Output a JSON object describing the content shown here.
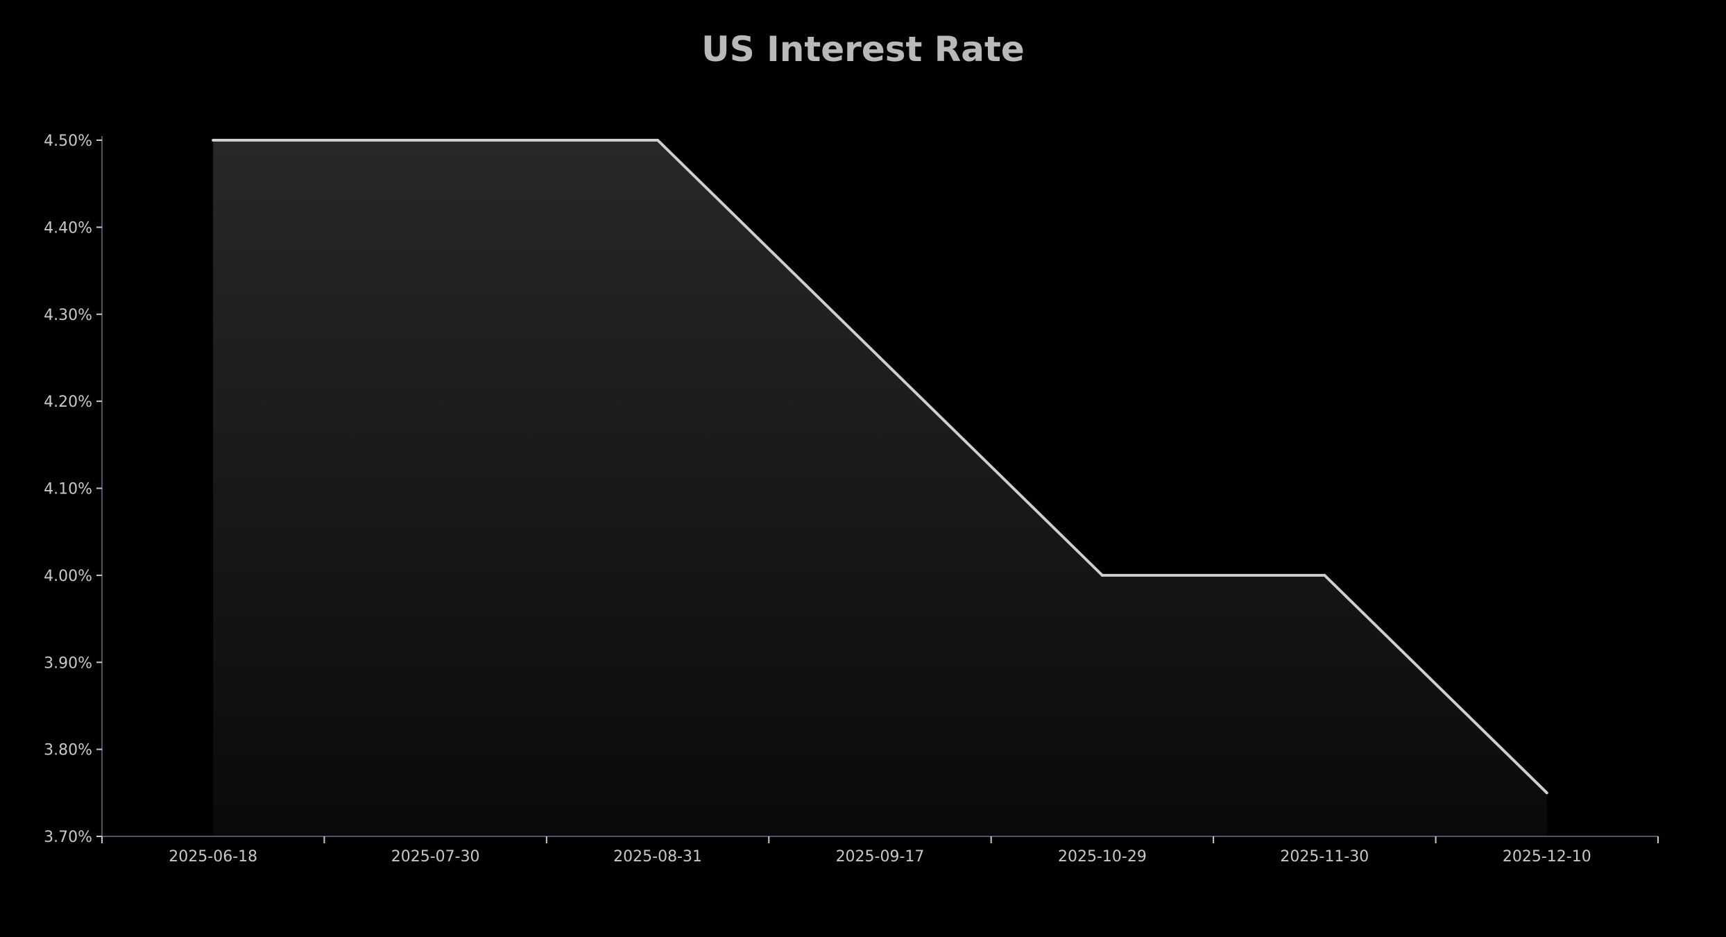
{
  "chart_data": {
    "type": "area",
    "title": "US Interest Rate",
    "xlabel": "",
    "ylabel": "",
    "categories": [
      "2025-06-18",
      "2025-07-30",
      "2025-08-31",
      "2025-09-17",
      "2025-10-29",
      "2025-11-30",
      "2025-12-10"
    ],
    "values": [
      4.5,
      4.5,
      4.5,
      4.25,
      4.0,
      4.0,
      3.75
    ],
    "ylim": [
      3.7,
      4.5
    ],
    "yticks": [
      3.7,
      3.8,
      3.9,
      4.0,
      4.1,
      4.2,
      4.3,
      4.4,
      4.5
    ],
    "ytick_labels": [
      "3.70%",
      "3.80%",
      "3.90%",
      "4.00%",
      "4.10%",
      "4.20%",
      "4.30%",
      "4.40%",
      "4.50%"
    ],
    "grid": false,
    "legend": "none",
    "colors": {
      "background": "#000000",
      "line": "#cfcfcf",
      "fill_top": "#282828",
      "fill_bottom": "#0a0a0a",
      "axis": "#4a5666",
      "text": "#c8c8c8",
      "title": "#b9b9b9"
    }
  }
}
